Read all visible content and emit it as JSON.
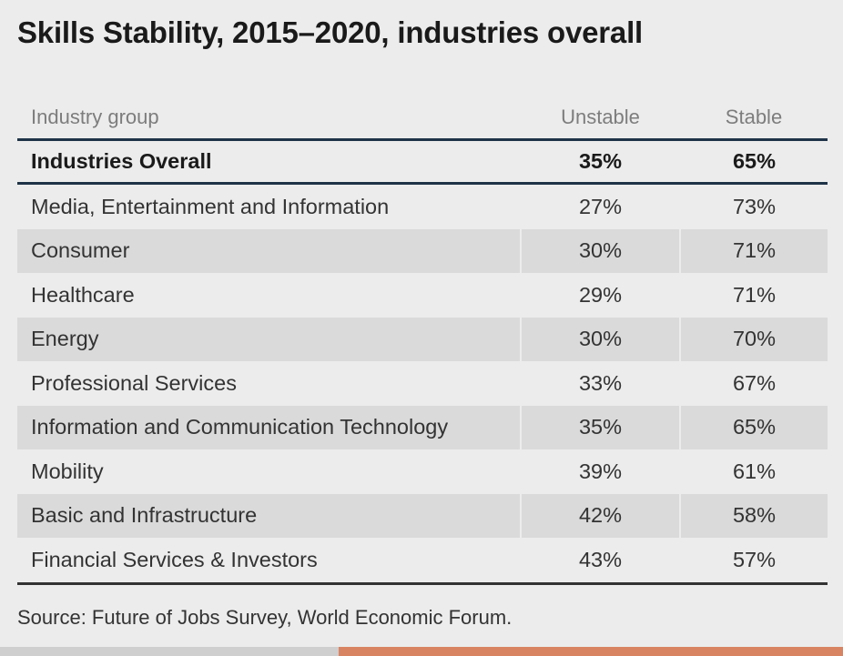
{
  "title": "Skills Stability, 2015–2020, industries overall",
  "source": "Source: Future of Jobs Survey, World Economic Forum.",
  "accent_color": "#d88462",
  "chart_data": {
    "type": "table",
    "title": "Skills Stability, 2015–2020, industries overall",
    "columns": [
      "Industry group",
      "Unstable",
      "Stable"
    ],
    "overall": {
      "name": "Industries Overall",
      "unstable": "35%",
      "stable": "65%"
    },
    "rows": [
      {
        "name": "Media, Entertainment and Information",
        "unstable": "27%",
        "stable": "73%"
      },
      {
        "name": "Consumer",
        "unstable": "30%",
        "stable": "71%"
      },
      {
        "name": "Healthcare",
        "unstable": "29%",
        "stable": "71%"
      },
      {
        "name": "Energy",
        "unstable": "30%",
        "stable": "70%"
      },
      {
        "name": "Professional Services",
        "unstable": "33%",
        "stable": "67%"
      },
      {
        "name": "Information and Communication Technology",
        "unstable": "35%",
        "stable": "65%"
      },
      {
        "name": "Mobility",
        "unstable": "39%",
        "stable": "61%"
      },
      {
        "name": "Basic and Infrastructure",
        "unstable": "42%",
        "stable": "58%"
      },
      {
        "name": "Financial Services & Investors",
        "unstable": "43%",
        "stable": "57%"
      }
    ]
  }
}
